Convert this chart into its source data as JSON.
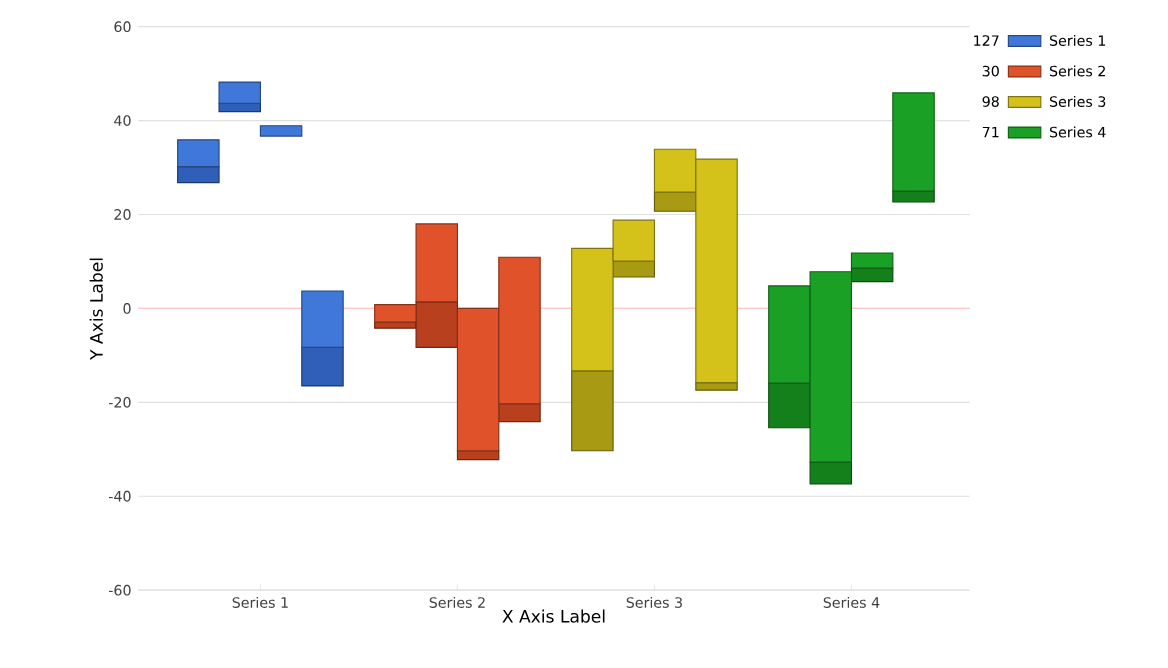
{
  "chart_data": {
    "type": "bar",
    "xlabel": "X Axis Label",
    "ylabel": "Y Axis Label",
    "categories": [
      "Series 1",
      "Series 2",
      "Series 3",
      "Series 4"
    ],
    "series": [
      {
        "color": "#2f5fb8",
        "x": [
          "Series 1",
          "Series 1",
          "Series 1",
          "Series 1"
        ],
        "base": [
          26.8,
          41.9,
          null,
          -16.5
        ],
        "values": [
          3.4,
          1.8,
          null,
          8.2
        ]
      },
      {
        "name": "Series 1",
        "color": "#3f78d8",
        "x": [
          "Series 1",
          "Series 1",
          "Series 1",
          "Series 1"
        ],
        "base": [
          30.2,
          43.7,
          36.7,
          -8.3
        ],
        "values": [
          5.7,
          4.5,
          2.2,
          12.0
        ]
      },
      {
        "color": "#b8401e",
        "x": [
          "Series 2",
          "Series 2",
          "Series 2",
          "Series 2"
        ],
        "base": [
          -4.2,
          -8.3,
          -32.2,
          -24.1
        ],
        "values": [
          1.3,
          9.7,
          1.9,
          3.8
        ]
      },
      {
        "name": "Series 2",
        "color": "#e0522a",
        "x": [
          "Series 2",
          "Series 2",
          "Series 2",
          "Series 2"
        ],
        "base": [
          -2.9,
          1.4,
          -30.3,
          -20.3
        ],
        "values": [
          3.7,
          16.6,
          30.3,
          31.2
        ]
      },
      {
        "color": "#a89a12",
        "x": [
          "Series 3",
          "Series 3",
          "Series 3",
          "Series 3"
        ],
        "base": [
          -30.3,
          6.7,
          20.7,
          -17.4
        ],
        "values": [
          17.0,
          3.4,
          4.1,
          1.6
        ]
      },
      {
        "name": "Series 3",
        "color": "#d4c21a",
        "x": [
          "Series 3",
          "Series 3",
          "Series 3",
          "Series 3"
        ],
        "base": [
          -13.3,
          10.1,
          24.8,
          -15.8
        ],
        "values": [
          26.1,
          8.7,
          9.1,
          47.6
        ]
      },
      {
        "color": "#13801b",
        "x": [
          "Series 4",
          "Series 4",
          "Series 4",
          "Series 4"
        ],
        "base": [
          -25.4,
          -37.4,
          5.7,
          22.7
        ],
        "values": [
          9.5,
          4.7,
          2.9,
          2.3
        ]
      },
      {
        "name": "Series 4",
        "color": "#1aa024",
        "x": [
          "Series 4",
          "Series 4",
          "Series 4",
          "Series 4"
        ],
        "base": [
          -15.9,
          -32.7,
          8.6,
          25.0
        ],
        "values": [
          20.7,
          40.5,
          3.2,
          20.9
        ]
      }
    ],
    "ylim": [
      -60,
      60
    ],
    "yticks": [
      -60,
      -40,
      -20,
      0,
      20,
      40,
      60
    ],
    "grid": "y",
    "ref_lines": [
      {
        "axis": "y",
        "value": 0,
        "color": "#ffc8c8"
      }
    ],
    "legend": "top right",
    "annotations": [
      "127",
      "30",
      "98",
      "71"
    ]
  }
}
